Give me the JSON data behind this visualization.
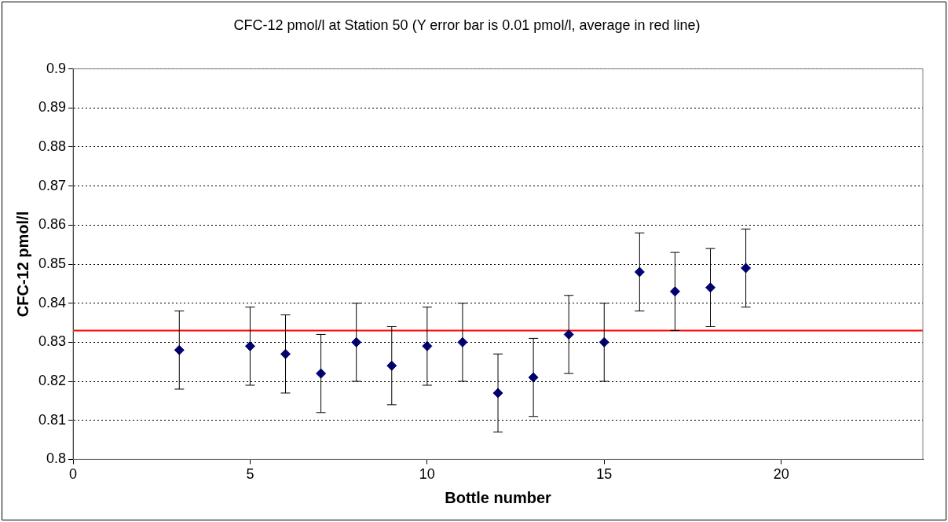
{
  "chart_data": {
    "type": "scatter",
    "title": "CFC-12 pmol/l at Station 50 (Y error bar is 0.01 pmol/l, average in red line)",
    "xlabel": "Bottle number",
    "ylabel": "CFC-12 pmol/l",
    "x": [
      3,
      5,
      6,
      7,
      8,
      9,
      10,
      11,
      12,
      13,
      14,
      15,
      16,
      17,
      18,
      19
    ],
    "series": [
      {
        "color": "#000080",
        "values": [
          0.828,
          0.829,
          0.827,
          0.822,
          0.83,
          0.824,
          0.829,
          0.83,
          0.817,
          0.821,
          0.832,
          0.83,
          0.848,
          0.843,
          0.844,
          0.849
        ],
        "errors": [
          0.01,
          0.01,
          0.01,
          0.01,
          0.01,
          0.01,
          0.01,
          0.01,
          0.01,
          0.01,
          0.01,
          0.01,
          0.01,
          0.01,
          0.01,
          0.01
        ]
      }
    ],
    "xlim": [
      0,
      24
    ],
    "xticks": [
      0,
      5,
      10,
      15,
      20
    ],
    "ylim": [
      0.8,
      0.9
    ],
    "yticks": [
      0.8,
      0.81,
      0.82,
      0.83,
      0.84,
      0.85,
      0.86,
      0.87,
      0.88,
      0.89,
      0.9
    ],
    "ref_lines": [
      {
        "axis": "y",
        "value": 0.833,
        "color": "#ff0000"
      }
    ],
    "grid": "y",
    "legend": false,
    "marker": "diamond"
  }
}
